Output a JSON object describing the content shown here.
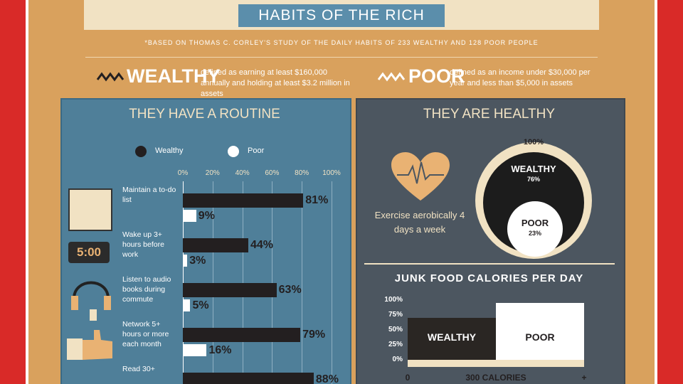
{
  "header": {
    "title": "HABITS OF THE RICH",
    "note": "*BASED ON THOMAS C. CORLEY'S STUDY OF THE DAILY HABITS OF 233 WEALTHY AND 128 POOR PEOPLE"
  },
  "definitions": [
    {
      "label": "WEALTHY",
      "text": "defined as earning at least $160,000 annually and holding at least $3.2 million in assets"
    },
    {
      "label": "POOR",
      "text": "defined as an income under $30,000 per year and less than $5,000 in assets"
    }
  ],
  "chart_data": [
    {
      "type": "hbar",
      "title": "THEY HAVE A ROUTINE",
      "icon_label": "5:00",
      "categories": [
        "Maintain a to-do list",
        "Wake up 3+ hours before work",
        "Listen to audio books during commute",
        "Network 5+ hours or more each month",
        "Read 30+"
      ],
      "series": [
        {
          "name": "Wealthy",
          "color": "#231f20",
          "values": [
            81,
            44,
            63,
            79,
            88
          ],
          "value_labels": [
            "81%",
            "44%",
            "63%",
            "79%",
            "88%"
          ]
        },
        {
          "name": "Poor",
          "color": "#ffffff",
          "values": [
            9,
            3,
            5,
            16,
            null
          ],
          "value_labels": [
            "9%",
            "3%",
            "5%",
            "16%",
            null
          ]
        }
      ],
      "xlim": [
        0,
        100
      ],
      "xticks": [
        {
          "value": 0,
          "label": "0%"
        },
        {
          "value": 20,
          "label": "20%"
        },
        {
          "value": 40,
          "label": "40%"
        },
        {
          "value": 60,
          "label": "60%"
        },
        {
          "value": 80,
          "label": "80%"
        },
        {
          "value": 100,
          "label": "100%"
        }
      ],
      "grid": true
    },
    {
      "type": "circles",
      "title": "THEY ARE HEALTHY",
      "caption": "Exercise aerobically 4 days a week",
      "total": 100,
      "total_label": "100%",
      "series": [
        {
          "name": "WEALTHY",
          "color": "#1c1c1c",
          "values": [
            76
          ],
          "value_labels": [
            "76%"
          ]
        },
        {
          "name": "POOR",
          "color": "#ffffff",
          "values": [
            23
          ],
          "value_labels": [
            "23%"
          ]
        }
      ]
    },
    {
      "type": "bar",
      "title": "JUNK FOOD CALORIES PER DAY",
      "categories": [
        "WEALTHY",
        "POOR"
      ],
      "values": [
        70,
        95
      ],
      "colors": [
        "#2a2623",
        "#ffffff"
      ],
      "ylim": [
        0,
        100
      ],
      "yticks": [
        {
          "value": 0,
          "label": "0%"
        },
        {
          "value": 25,
          "label": "25%"
        },
        {
          "value": 50,
          "label": "50%"
        },
        {
          "value": 75,
          "label": "75%"
        },
        {
          "value": 100,
          "label": "100%"
        }
      ],
      "x_labels": [
        "0",
        "300 CALORIES",
        "+"
      ]
    }
  ]
}
